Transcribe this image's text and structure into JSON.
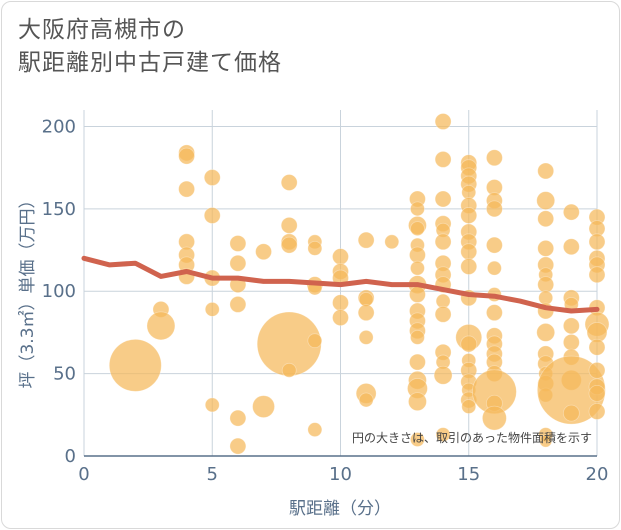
{
  "title_line1": "大阪府高槻市の",
  "title_line2": "駅距離別中古戸建て価格",
  "chart_data": {
    "type": "scatter",
    "xlabel": "駅距離（分）",
    "ylabel": "坪（3.3㎡）単価（万円）",
    "xlim": [
      0,
      20
    ],
    "ylim": [
      0,
      210
    ],
    "xticks": [
      "0",
      "5",
      "10",
      "15",
      "20"
    ],
    "yticks": [
      "0",
      "50",
      "100",
      "150",
      "200"
    ],
    "annotation": "円の大きさは、取引のあった物件面積を示す",
    "grid": true,
    "colors": {
      "bubble": "#f5b85a",
      "line": "#d0634e",
      "grid": "#c9d3dc",
      "axis": "#59708a"
    },
    "points": [
      [
        2,
        55,
        26
      ],
      [
        3,
        89,
        8
      ],
      [
        3,
        79,
        14
      ],
      [
        4,
        184,
        8
      ],
      [
        4,
        182,
        8
      ],
      [
        4,
        162,
        8
      ],
      [
        4,
        130,
        8
      ],
      [
        4,
        122,
        8
      ],
      [
        4,
        116,
        8
      ],
      [
        4,
        109,
        8
      ],
      [
        5,
        169,
        8
      ],
      [
        5,
        146,
        8
      ],
      [
        5,
        108,
        8
      ],
      [
        5,
        89,
        7
      ],
      [
        5,
        31,
        7
      ],
      [
        6,
        129,
        8
      ],
      [
        6,
        117,
        8
      ],
      [
        6,
        104,
        8
      ],
      [
        6,
        92,
        8
      ],
      [
        6,
        23,
        8
      ],
      [
        6,
        6,
        8
      ],
      [
        7,
        124,
        8
      ],
      [
        7,
        30,
        11
      ],
      [
        8,
        166,
        8
      ],
      [
        8,
        140,
        8
      ],
      [
        8,
        130,
        8
      ],
      [
        8,
        128,
        8
      ],
      [
        8,
        68,
        32
      ],
      [
        8,
        52,
        7
      ],
      [
        9,
        130,
        7
      ],
      [
        9,
        126,
        7
      ],
      [
        9,
        104,
        8
      ],
      [
        9,
        102,
        7
      ],
      [
        9,
        70,
        7
      ],
      [
        9,
        16,
        7
      ],
      [
        10,
        121,
        8
      ],
      [
        10,
        112,
        8
      ],
      [
        10,
        108,
        8
      ],
      [
        10,
        93,
        8
      ],
      [
        10,
        84,
        8
      ],
      [
        11,
        131,
        8
      ],
      [
        11,
        96,
        8
      ],
      [
        11,
        95,
        7
      ],
      [
        11,
        87,
        8
      ],
      [
        11,
        72,
        7
      ],
      [
        11,
        38,
        10
      ],
      [
        11,
        34,
        7
      ],
      [
        12,
        130,
        7
      ],
      [
        13,
        156,
        8
      ],
      [
        13,
        150,
        7
      ],
      [
        13,
        140,
        9
      ],
      [
        13,
        138,
        7
      ],
      [
        13,
        128,
        7
      ],
      [
        13,
        122,
        8
      ],
      [
        13,
        114,
        7
      ],
      [
        13,
        104,
        9
      ],
      [
        13,
        98,
        8
      ],
      [
        13,
        88,
        8
      ],
      [
        13,
        82,
        8
      ],
      [
        13,
        76,
        8
      ],
      [
        13,
        72,
        7
      ],
      [
        13,
        57,
        8
      ],
      [
        13,
        46,
        9
      ],
      [
        13,
        41,
        10
      ],
      [
        13,
        33,
        9
      ],
      [
        13,
        10,
        7
      ],
      [
        14,
        203,
        8
      ],
      [
        14,
        180,
        8
      ],
      [
        14,
        156,
        8
      ],
      [
        14,
        141,
        8
      ],
      [
        14,
        137,
        7
      ],
      [
        14,
        130,
        8
      ],
      [
        14,
        117,
        8
      ],
      [
        14,
        110,
        8
      ],
      [
        14,
        104,
        8
      ],
      [
        14,
        94,
        7
      ],
      [
        14,
        86,
        8
      ],
      [
        14,
        63,
        8
      ],
      [
        14,
        57,
        7
      ],
      [
        14,
        49,
        9
      ],
      [
        14,
        13,
        7
      ],
      [
        15,
        178,
        8
      ],
      [
        15,
        175,
        8
      ],
      [
        15,
        170,
        8
      ],
      [
        15,
        165,
        8
      ],
      [
        15,
        160,
        7
      ],
      [
        15,
        152,
        8
      ],
      [
        15,
        146,
        8
      ],
      [
        15,
        136,
        8
      ],
      [
        15,
        130,
        8
      ],
      [
        15,
        124,
        8
      ],
      [
        15,
        115,
        8
      ],
      [
        15,
        96,
        8
      ],
      [
        15,
        72,
        13
      ],
      [
        15,
        68,
        8
      ],
      [
        15,
        58,
        7
      ],
      [
        15,
        52,
        8
      ],
      [
        15,
        45,
        8
      ],
      [
        15,
        40,
        7
      ],
      [
        15,
        34,
        8
      ],
      [
        15,
        30,
        7
      ],
      [
        16,
        181,
        8
      ],
      [
        16,
        163,
        8
      ],
      [
        16,
        155,
        8
      ],
      [
        16,
        150,
        8
      ],
      [
        16,
        128,
        8
      ],
      [
        16,
        114,
        7
      ],
      [
        16,
        98,
        7
      ],
      [
        16,
        87,
        8
      ],
      [
        16,
        73,
        8
      ],
      [
        16,
        68,
        8
      ],
      [
        16,
        62,
        8
      ],
      [
        16,
        57,
        8
      ],
      [
        16,
        50,
        8
      ],
      [
        16,
        39,
        22
      ],
      [
        16,
        32,
        8
      ],
      [
        16,
        23,
        12
      ],
      [
        18,
        173,
        8
      ],
      [
        18,
        155,
        9
      ],
      [
        18,
        144,
        8
      ],
      [
        18,
        126,
        8
      ],
      [
        18,
        116,
        8
      ],
      [
        18,
        110,
        7
      ],
      [
        18,
        104,
        8
      ],
      [
        18,
        96,
        7
      ],
      [
        18,
        88,
        8
      ],
      [
        18,
        75,
        9
      ],
      [
        18,
        62,
        8
      ],
      [
        18,
        56,
        8
      ],
      [
        18,
        50,
        7
      ],
      [
        18,
        44,
        8
      ],
      [
        18,
        37,
        7
      ],
      [
        18,
        13,
        7
      ],
      [
        18,
        9,
        6
      ],
      [
        19,
        148,
        8
      ],
      [
        19,
        127,
        8
      ],
      [
        19,
        96,
        8
      ],
      [
        19,
        92,
        7
      ],
      [
        19,
        79,
        8
      ],
      [
        19,
        69,
        8
      ],
      [
        19,
        60,
        8
      ],
      [
        19,
        46,
        10
      ],
      [
        19,
        40,
        34
      ],
      [
        19,
        26,
        8
      ],
      [
        20,
        145,
        8
      ],
      [
        20,
        138,
        8
      ],
      [
        20,
        130,
        8
      ],
      [
        20,
        120,
        8
      ],
      [
        20,
        116,
        8
      ],
      [
        20,
        110,
        8
      ],
      [
        20,
        90,
        8
      ],
      [
        20,
        80,
        12
      ],
      [
        20,
        75,
        10
      ],
      [
        20,
        66,
        8
      ],
      [
        20,
        52,
        8
      ],
      [
        20,
        42,
        8
      ],
      [
        20,
        38,
        8
      ],
      [
        20,
        27,
        8
      ]
    ],
    "trend": {
      "x": [
        0,
        1,
        2,
        3,
        4,
        5,
        6,
        7,
        8,
        9,
        10,
        11,
        12,
        13,
        14,
        15,
        16,
        17,
        18,
        19,
        20
      ],
      "y": [
        120,
        116,
        117,
        109,
        112,
        108,
        108,
        106,
        106,
        105,
        104,
        106,
        104,
        104,
        101,
        98,
        97,
        94,
        90,
        88,
        89
      ]
    }
  }
}
